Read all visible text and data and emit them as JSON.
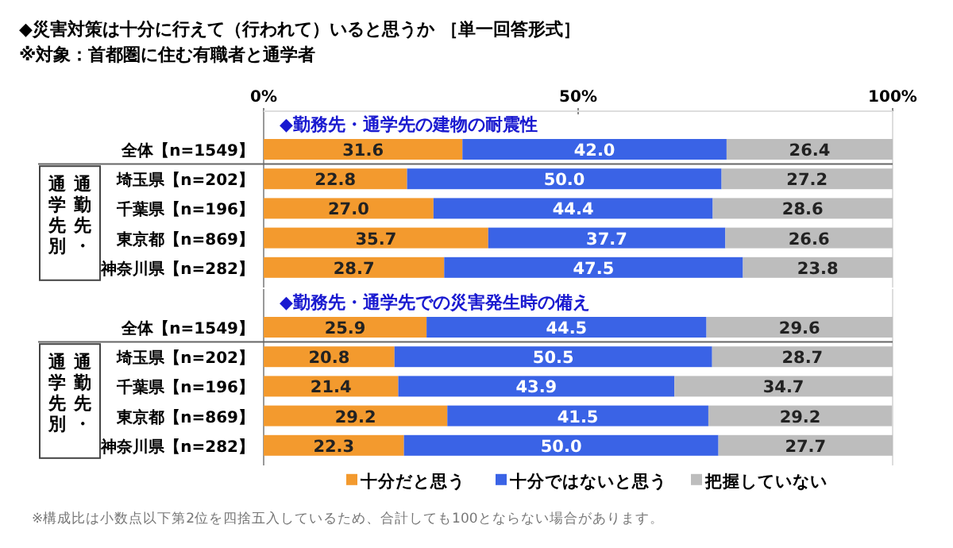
{
  "chart_data": [
    {
      "type": "bar",
      "orientation": "horizontal",
      "stacked": true,
      "title": "◆勤務先・通学先の建物の耐震性",
      "categories": [
        "全体【n=1549】",
        "埼玉県【n=202】",
        "千葉県【n=196】",
        "東京都【n=869】",
        "神奈川県【n=282】"
      ],
      "series": [
        {
          "color": "#f39a2e",
          "values": [
            31.6,
            22.8,
            27.0,
            35.7,
            28.7
          ],
          "value_labels": [
            "31.6",
            "22.8",
            "27.0",
            "35.7",
            "28.7"
          ]
        },
        {
          "color": "#3a63e6",
          "values": [
            42.0,
            50.0,
            44.4,
            37.7,
            47.5
          ],
          "value_labels": [
            "42.0",
            "50.0",
            "44.4",
            "37.7",
            "47.5"
          ]
        },
        {
          "color": "#bdbdbd",
          "values": [
            26.4,
            27.2,
            28.6,
            26.6,
            23.8
          ],
          "value_labels": [
            "26.4",
            "27.2",
            "28.6",
            "26.6",
            "23.8"
          ]
        }
      ],
      "xlim": [
        0,
        100
      ],
      "xticks": [
        {
          "value": 0,
          "label": "0%"
        },
        {
          "value": 50,
          "label": "50%"
        },
        {
          "value": 100,
          "label": "100%"
        }
      ],
      "annotations": [
        "◆災害対策は十分に行えて（行われて）いると思うか ［単一回答形式］",
        "※対象：首都圏に住む有職者と通学者",
        "通勤先・通学先別"
      ]
    },
    {
      "type": "bar",
      "orientation": "horizontal",
      "stacked": true,
      "title": "◆勤務先・通学先での災害発生時の備え",
      "categories": [
        "全体【n=1549】",
        "埼玉県【n=202】",
        "千葉県【n=196】",
        "東京都【n=869】",
        "神奈川県【n=282】"
      ],
      "series": [
        {
          "name": "十分だと思う",
          "color": "#f39a2e",
          "values": [
            25.9,
            20.8,
            21.4,
            29.2,
            22.3
          ],
          "value_labels": [
            "25.9",
            "20.8",
            "21.4",
            "29.2",
            "22.3"
          ]
        },
        {
          "name": "十分ではないと思う",
          "color": "#3a63e6",
          "values": [
            44.5,
            50.5,
            43.9,
            41.5,
            50.0
          ],
          "value_labels": [
            "44.5",
            "50.5",
            "43.9",
            "41.5",
            "50.0"
          ]
        },
        {
          "name": "把握していない",
          "color": "#bdbdbd",
          "values": [
            29.6,
            28.7,
            34.7,
            29.2,
            27.7
          ],
          "value_labels": [
            "29.6",
            "28.7",
            "34.7",
            "29.2",
            "27.7"
          ]
        }
      ],
      "xlim": [
        0,
        100
      ],
      "tick_labels": "y",
      "legend": "bottom",
      "annotations": [
        "通勤先・通学先別",
        "※構成比は小数点以下第2位を四捨五入しているため、合計しても100とならない場合があります。"
      ]
    }
  ]
}
